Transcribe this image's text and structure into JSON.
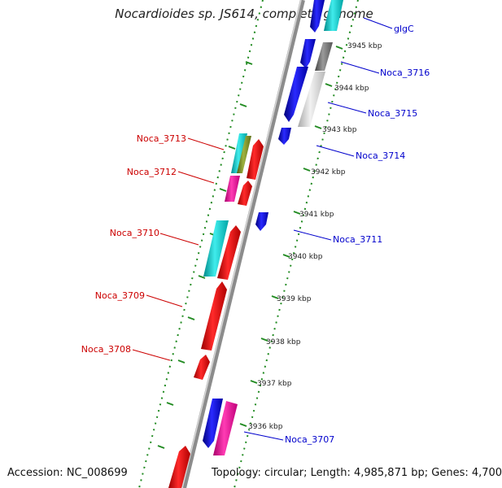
{
  "title": "Nocardioides sp. JS614, complete genome",
  "footer": {
    "accession": "Accession: NC_008699",
    "summary": "Topology: circular; Length: 4,985,871 bp; Genes: 4,700"
  },
  "colors": {
    "forward_label": "#cc0000",
    "reverse_label": "#0000cc",
    "tick": "#228b22",
    "backbone": "#8c8c8c"
  },
  "kbp_ticks": [
    "3945 kbp",
    "3944 kbp",
    "3943 kbp",
    "3942 kbp",
    "3941 kbp",
    "3940 kbp",
    "3939 kbp",
    "3938 kbp",
    "3937 kbp",
    "3936 kbp"
  ],
  "left_labels": [
    "Noca_3713",
    "Noca_3712",
    "Noca_3710",
    "Noca_3709",
    "Noca_3708"
  ],
  "right_labels": [
    "glgC",
    "Noca_3716",
    "Noca_3715",
    "Noca_3714",
    "Noca_3711",
    "Noca_3707"
  ]
}
